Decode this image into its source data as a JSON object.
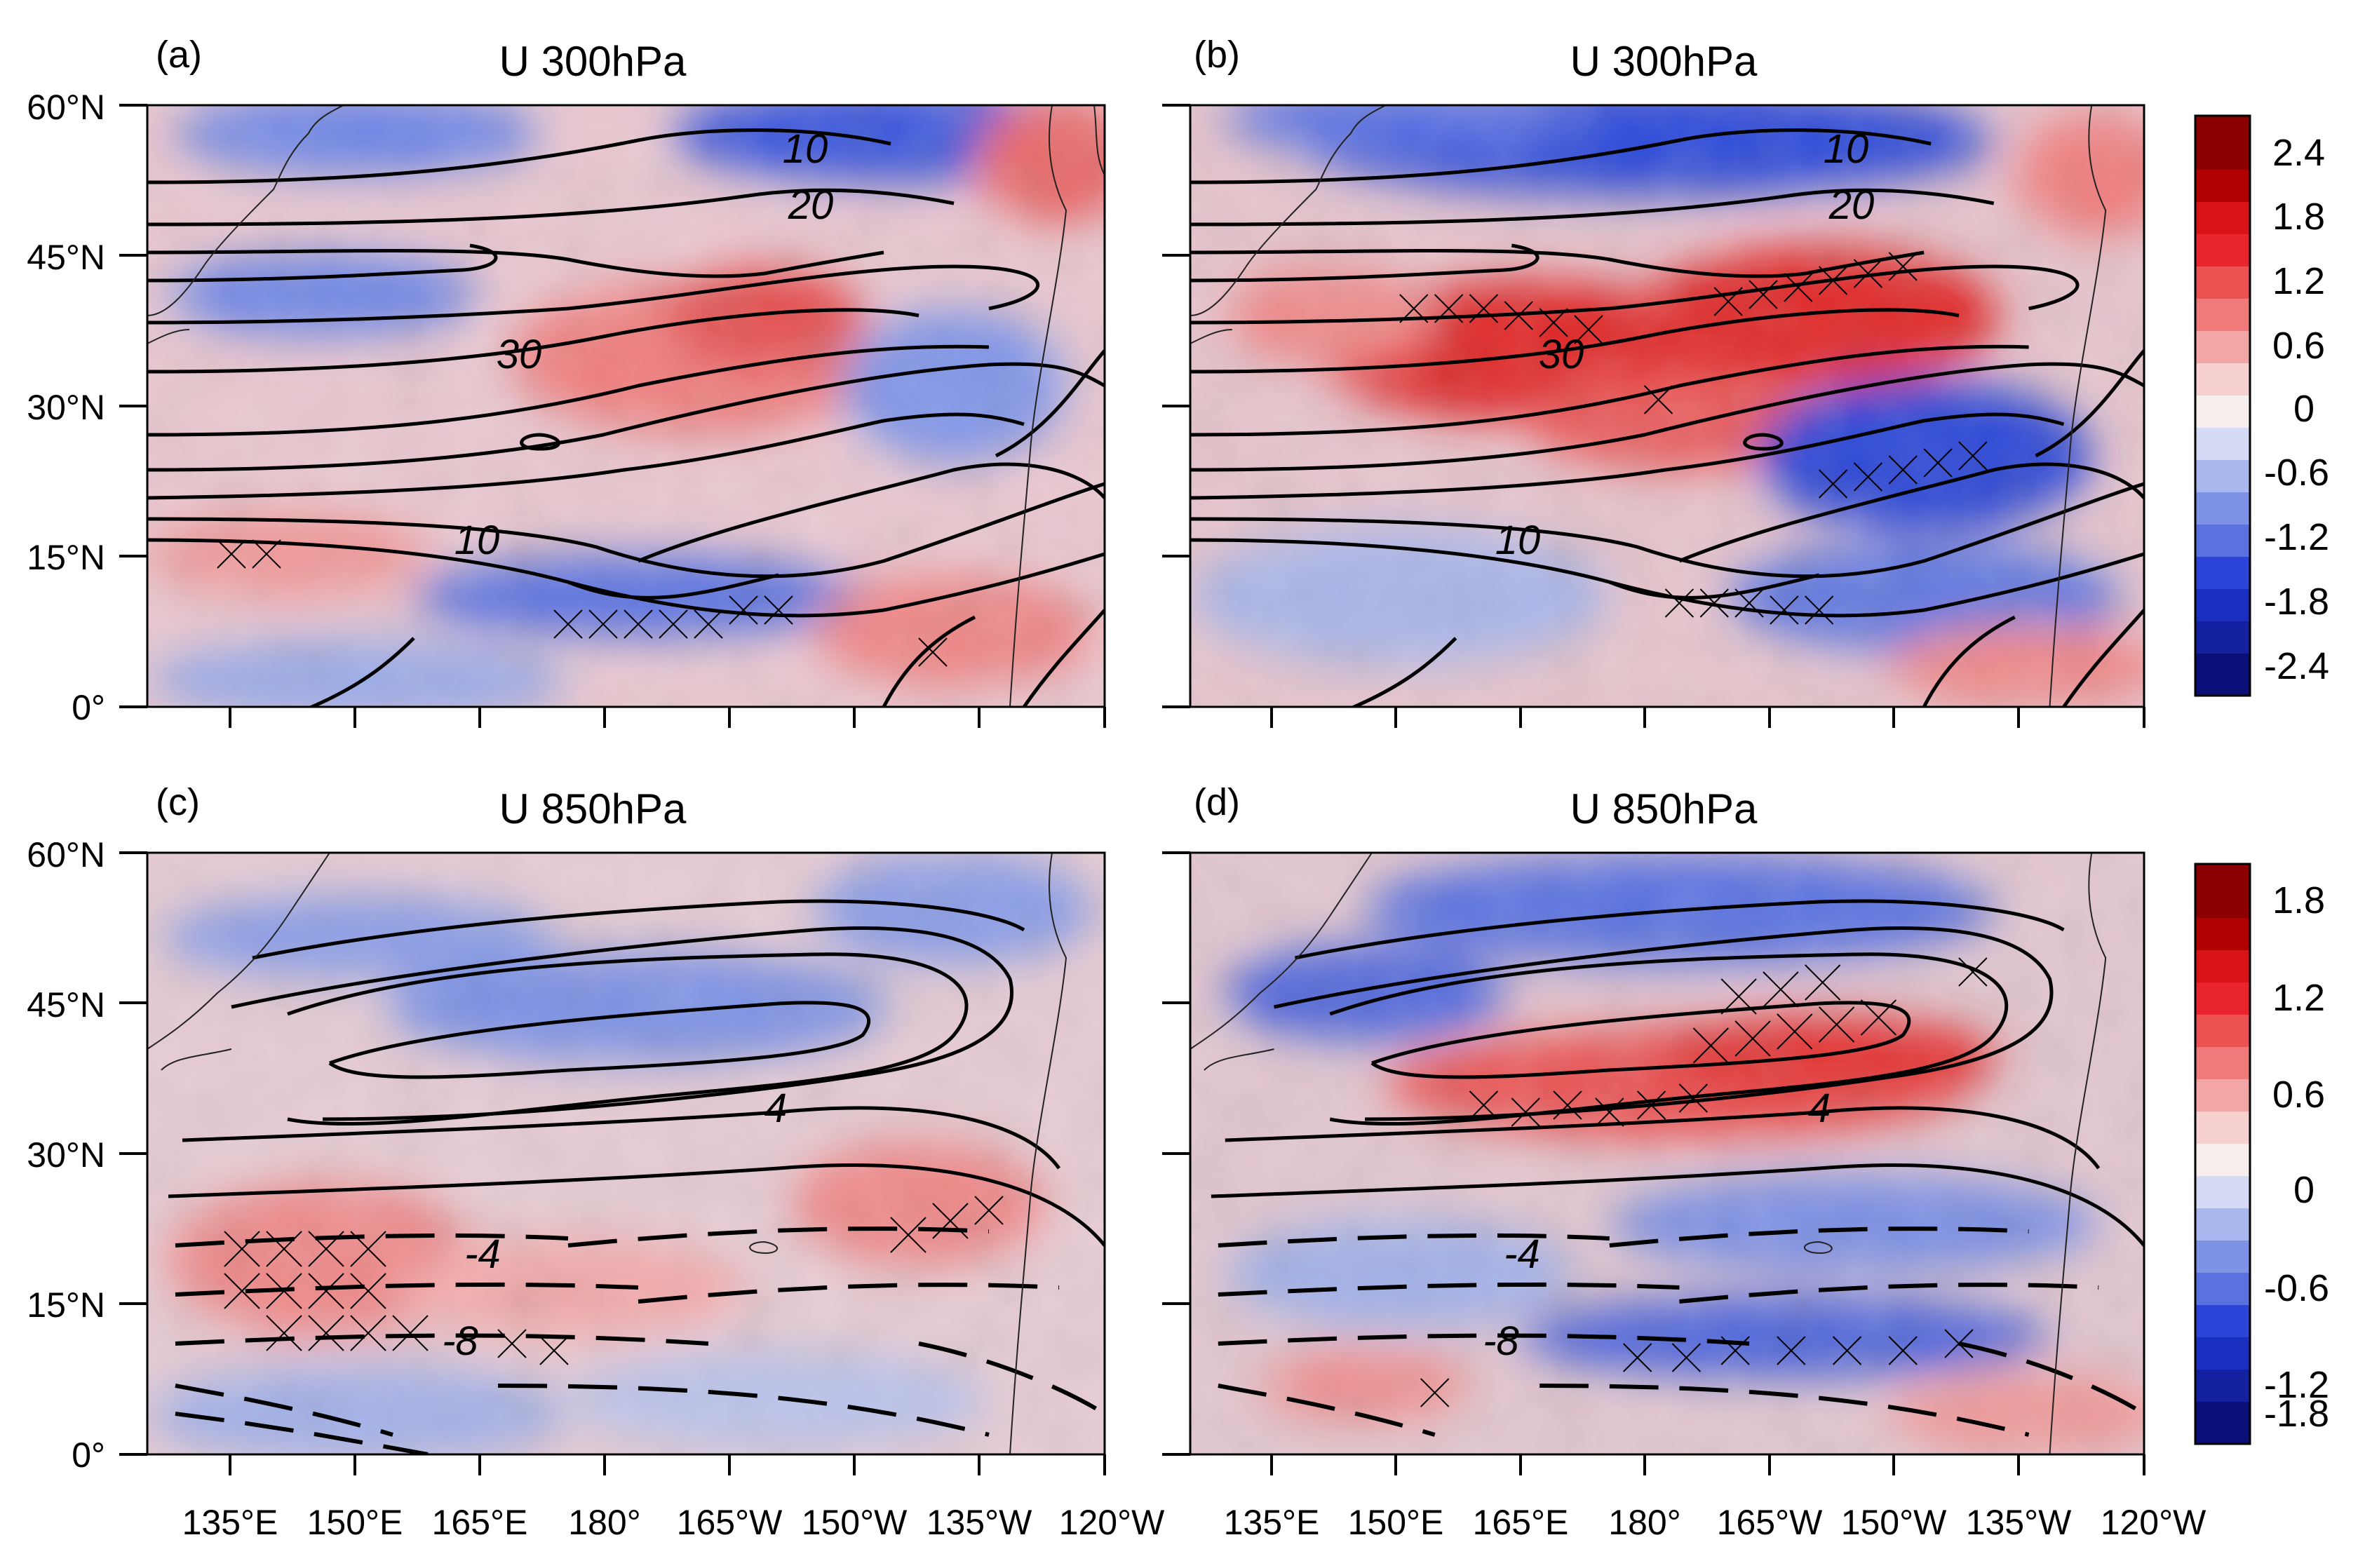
{
  "figure": {
    "panels": [
      {
        "letter": "(a)",
        "title": "U 300hPa",
        "contour_labels": [
          "10",
          "20",
          "30",
          "10"
        ]
      },
      {
        "letter": "(b)",
        "title": "U 300hPa",
        "contour_labels": [
          "10",
          "20",
          "30",
          "10"
        ]
      },
      {
        "letter": "(c)",
        "title": "U 850hPa",
        "contour_labels": [
          "4",
          "-4",
          "-8"
        ]
      },
      {
        "letter": "(d)",
        "title": "U 850hPa",
        "contour_labels": [
          "4",
          "-4",
          "-8"
        ]
      }
    ],
    "lat_labels": [
      "60°N",
      "45°N",
      "30°N",
      "15°N",
      "0°"
    ],
    "lon_labels": [
      "135°E",
      "150°E",
      "165°E",
      "180°",
      "165°W",
      "150°W",
      "135°W",
      "120°W"
    ],
    "colorbars": [
      {
        "labels": [
          "2.4",
          "1.8",
          "1.2",
          "0.6",
          "0",
          "-0.6",
          "-1.2",
          "-1.8",
          "-2.4"
        ]
      },
      {
        "labels": [
          "1.8",
          "1.2",
          "0.6",
          "0",
          "-0.6",
          "-1.2",
          "-1.8"
        ]
      }
    ],
    "colors": {
      "red_dark": "#8a0000",
      "red": "#e8242c",
      "pink": "#f4a6a6",
      "white": "#f7eeee",
      "lightblue": "#a9b8ef",
      "blue": "#2c45d8",
      "blue_dark": "#0a0f78"
    }
  }
}
